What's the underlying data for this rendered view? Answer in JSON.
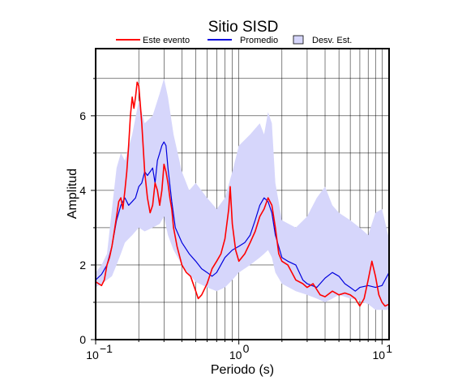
{
  "chart_data": {
    "type": "line",
    "title": "Sitio SISD",
    "xlabel": "Periodo (s)",
    "ylabel": "Amplitud",
    "xscale": "log",
    "xlim": [
      0.1,
      11.2
    ],
    "ylim": [
      0,
      7.8
    ],
    "yticks": [
      0,
      2,
      4,
      6
    ],
    "grid": true,
    "legend_position": "top",
    "colors": {
      "event": "#ff0000",
      "mean": "#0000dd",
      "band": "#d6d6fb"
    },
    "legend": [
      {
        "label": "Este evento",
        "kind": "line",
        "color": "#ff0000"
      },
      {
        "label": "Promedio",
        "kind": "line",
        "color": "#0000dd"
      },
      {
        "label": "Desv. Est.",
        "kind": "box",
        "color": "#d6d6fb"
      }
    ],
    "series": [
      {
        "name": "Este evento",
        "color": "#ff0000",
        "x": [
          0.1,
          0.105,
          0.11,
          0.115,
          0.12,
          0.125,
          0.13,
          0.135,
          0.14,
          0.145,
          0.15,
          0.155,
          0.16,
          0.165,
          0.17,
          0.175,
          0.18,
          0.185,
          0.19,
          0.195,
          0.2,
          0.205,
          0.21,
          0.22,
          0.23,
          0.24,
          0.25,
          0.26,
          0.27,
          0.28,
          0.29,
          0.3,
          0.31,
          0.32,
          0.33,
          0.34,
          0.35,
          0.37,
          0.4,
          0.43,
          0.46,
          0.5,
          0.52,
          0.55,
          0.6,
          0.65,
          0.7,
          0.75,
          0.8,
          0.85,
          0.87,
          0.9,
          0.95,
          1.0,
          1.1,
          1.2,
          1.3,
          1.4,
          1.5,
          1.6,
          1.7,
          1.8,
          1.9,
          2.0,
          2.2,
          2.5,
          2.8,
          3.0,
          3.3,
          3.7,
          4.0,
          4.5,
          5.0,
          5.5,
          6.0,
          6.5,
          7.0,
          7.5,
          8.0,
          8.5,
          9.0,
          9.5,
          10.0,
          10.5,
          11.2
        ],
        "values": [
          1.55,
          1.5,
          1.45,
          1.6,
          2.0,
          2.2,
          2.5,
          2.9,
          3.3,
          3.7,
          3.8,
          3.5,
          4.0,
          4.5,
          5.2,
          6.0,
          6.5,
          6.2,
          6.5,
          6.9,
          6.8,
          6.3,
          5.8,
          4.5,
          3.8,
          3.4,
          3.6,
          4.2,
          4.0,
          3.6,
          4.0,
          4.7,
          4.5,
          4.2,
          3.8,
          3.5,
          3.0,
          2.5,
          2.0,
          1.8,
          1.7,
          1.3,
          1.1,
          1.2,
          1.5,
          1.9,
          2.1,
          2.3,
          2.7,
          3.5,
          4.1,
          3.1,
          2.4,
          2.1,
          2.3,
          2.6,
          2.9,
          3.3,
          3.5,
          3.8,
          3.6,
          3.0,
          2.3,
          2.1,
          2.0,
          1.6,
          1.5,
          1.4,
          1.5,
          1.2,
          1.15,
          1.3,
          1.2,
          1.25,
          1.2,
          1.1,
          0.9,
          1.1,
          1.6,
          2.1,
          1.7,
          1.2,
          1.0,
          0.9,
          0.95
        ]
      },
      {
        "name": "Promedio",
        "color": "#0000dd",
        "x": [
          0.1,
          0.11,
          0.12,
          0.13,
          0.14,
          0.15,
          0.16,
          0.17,
          0.18,
          0.19,
          0.2,
          0.21,
          0.22,
          0.23,
          0.24,
          0.25,
          0.26,
          0.27,
          0.28,
          0.29,
          0.3,
          0.31,
          0.32,
          0.34,
          0.36,
          0.4,
          0.45,
          0.5,
          0.55,
          0.6,
          0.65,
          0.7,
          0.8,
          0.9,
          1.0,
          1.1,
          1.2,
          1.3,
          1.4,
          1.5,
          1.6,
          1.7,
          1.8,
          2.0,
          2.2,
          2.5,
          2.8,
          3.0,
          3.5,
          4.0,
          4.5,
          5.0,
          5.5,
          6.0,
          6.5,
          7.0,
          8.0,
          9.0,
          10.0,
          10.5,
          11.2
        ],
        "values": [
          1.6,
          1.75,
          2.0,
          2.5,
          3.2,
          3.6,
          3.8,
          3.6,
          3.7,
          3.8,
          4.1,
          4.2,
          4.5,
          4.4,
          4.5,
          4.6,
          4.2,
          4.8,
          5.0,
          5.2,
          5.3,
          5.2,
          4.6,
          3.7,
          3.0,
          2.6,
          2.3,
          2.1,
          1.9,
          1.8,
          1.7,
          1.8,
          2.2,
          2.4,
          2.5,
          2.6,
          2.8,
          3.2,
          3.6,
          3.8,
          3.7,
          3.4,
          2.8,
          2.2,
          2.1,
          2.0,
          1.6,
          1.5,
          1.4,
          1.65,
          1.8,
          1.7,
          1.5,
          1.4,
          1.3,
          1.4,
          1.45,
          1.4,
          1.45,
          1.6,
          1.8
        ]
      }
    ],
    "band": {
      "name": "Desv. Est.",
      "x": [
        0.1,
        0.11,
        0.12,
        0.13,
        0.14,
        0.15,
        0.16,
        0.18,
        0.2,
        0.22,
        0.25,
        0.28,
        0.3,
        0.32,
        0.35,
        0.4,
        0.45,
        0.5,
        0.6,
        0.7,
        0.8,
        0.9,
        1.0,
        1.2,
        1.4,
        1.5,
        1.6,
        1.7,
        1.8,
        2.0,
        2.5,
        3.0,
        3.5,
        4.0,
        4.5,
        5.0,
        6.0,
        7.0,
        8.0,
        9.0,
        10.0,
        11.2
      ],
      "upper": [
        1.8,
        2.0,
        2.3,
        3.5,
        4.6,
        5.0,
        4.8,
        5.5,
        6.4,
        5.8,
        6.0,
        6.6,
        7.0,
        6.5,
        5.5,
        4.5,
        4.0,
        4.2,
        3.8,
        3.5,
        3.8,
        4.5,
        5.2,
        5.5,
        5.8,
        5.5,
        6.1,
        5.8,
        4.2,
        3.2,
        3.0,
        3.3,
        3.8,
        4.1,
        3.6,
        3.4,
        3.2,
        3.0,
        2.8,
        3.4,
        3.5,
        2.7
      ],
      "lower": [
        1.4,
        1.5,
        1.6,
        1.7,
        2.0,
        2.3,
        2.6,
        2.8,
        3.0,
        2.9,
        3.0,
        3.1,
        3.3,
        2.8,
        2.4,
        2.0,
        1.75,
        1.55,
        1.4,
        1.3,
        1.4,
        1.6,
        1.8,
        2.0,
        2.2,
        2.3,
        2.4,
        2.2,
        1.8,
        1.5,
        1.3,
        1.2,
        1.1,
        1.0,
        1.1,
        1.2,
        1.1,
        1.05,
        0.95,
        0.8,
        0.8,
        0.8
      ]
    }
  }
}
